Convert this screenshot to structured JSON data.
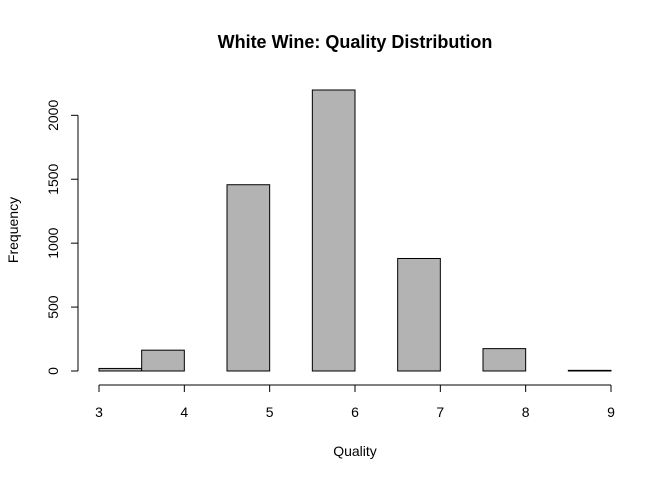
{
  "chart_data": {
    "type": "bar",
    "title": "White Wine: Quality Distribution",
    "xlabel": "Quality",
    "ylabel": "Frequency",
    "bin_width": 0.5,
    "bins": [
      {
        "start": 3.0,
        "end": 3.5,
        "value": 20
      },
      {
        "start": 3.5,
        "end": 4.0,
        "value": 163
      },
      {
        "start": 4.0,
        "end": 4.5,
        "value": 0
      },
      {
        "start": 4.5,
        "end": 5.0,
        "value": 1457
      },
      {
        "start": 5.0,
        "end": 5.5,
        "value": 0
      },
      {
        "start": 5.5,
        "end": 6.0,
        "value": 2198
      },
      {
        "start": 6.0,
        "end": 6.5,
        "value": 0
      },
      {
        "start": 6.5,
        "end": 7.0,
        "value": 880
      },
      {
        "start": 7.0,
        "end": 7.5,
        "value": 0
      },
      {
        "start": 7.5,
        "end": 8.0,
        "value": 175
      },
      {
        "start": 8.0,
        "end": 8.5,
        "value": 0
      },
      {
        "start": 8.5,
        "end": 9.0,
        "value": 5
      }
    ],
    "xlim": [
      3,
      9
    ],
    "ylim": [
      0,
      2198
    ],
    "xticks": [
      3,
      4,
      5,
      6,
      7,
      8,
      9
    ],
    "yticks": [
      0,
      500,
      1000,
      1500,
      2000
    ],
    "bar_fill": "#b3b3b3",
    "bar_stroke": "#000000",
    "grid": false,
    "legend": "none"
  }
}
